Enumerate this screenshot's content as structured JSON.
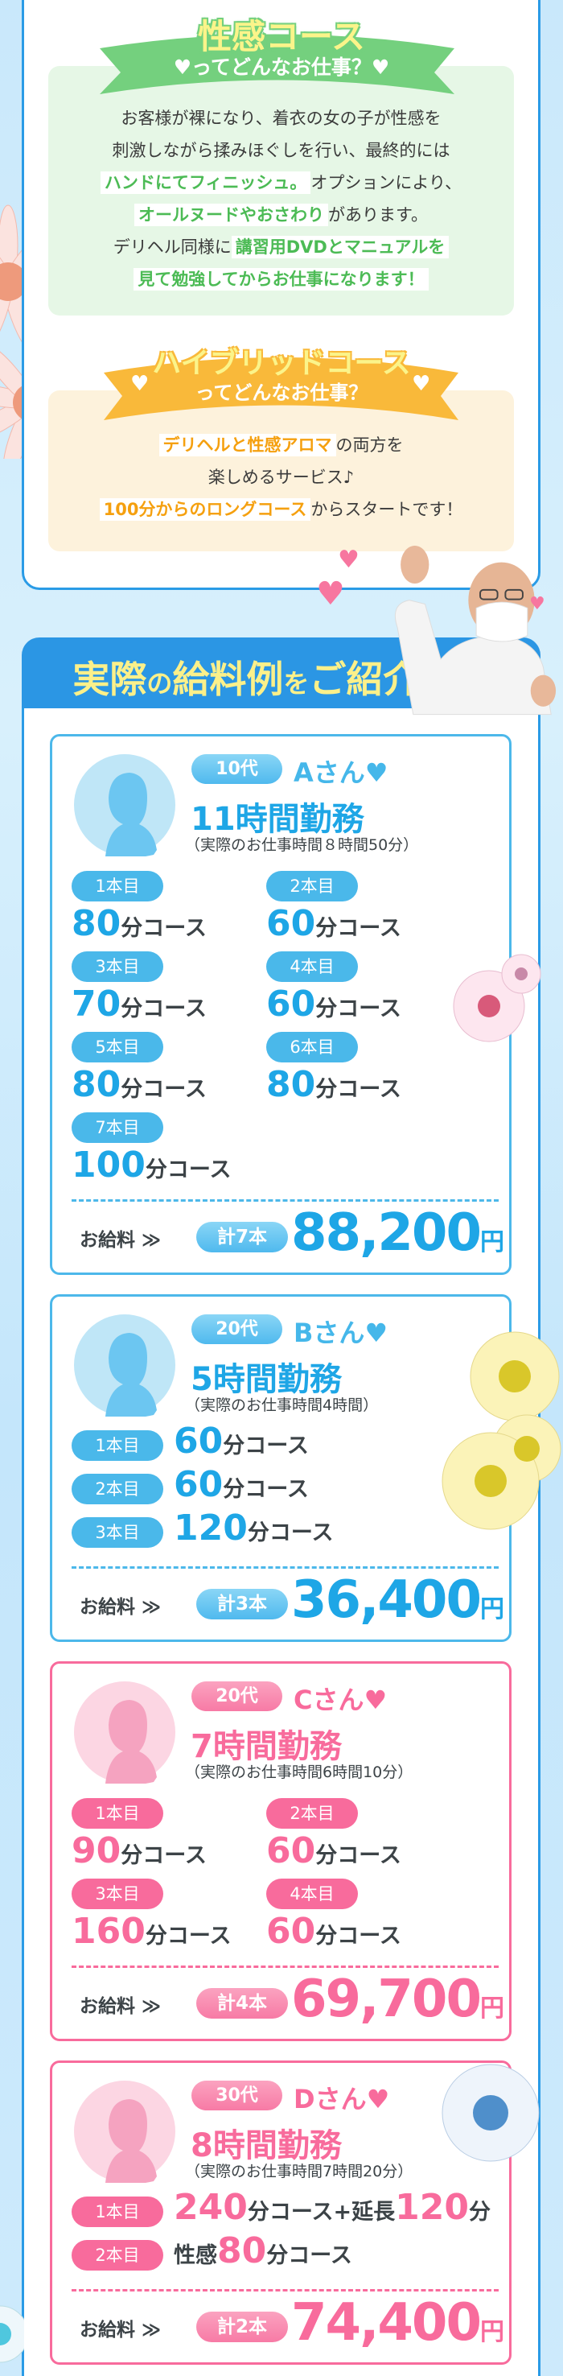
{
  "colors": {
    "blue": "#2a9be6",
    "card_blue": "#4cb8ea",
    "pink": "#f86b9c",
    "green": "#74d07e",
    "green_text": "#4cbb55",
    "orange": "#f9b93a",
    "orange_text": "#f5a00f",
    "yellow": "#fbf48a"
  },
  "seikan": {
    "title": "性感コース",
    "subtitle": "♥ってどんなお仕事？♥",
    "lines": [
      [
        {
          "t": "お客様が裸になり、着衣の女の子が性感を",
          "hl": false
        }
      ],
      [
        {
          "t": "刺激しながら揉みほぐしを行い、最終的には",
          "hl": false
        }
      ],
      [
        {
          "t": "ハンドにてフィニッシュ。",
          "hl": true
        },
        {
          "t": "オプションにより、",
          "hl": false
        }
      ],
      [
        {
          "t": "オールヌードやおさわり",
          "hl": true
        },
        {
          "t": "があります。",
          "hl": false
        }
      ],
      [
        {
          "t": "デリヘル同様に",
          "hl": false
        },
        {
          "t": "講習用DVDとマニュアルを",
          "hl": true
        }
      ],
      [
        {
          "t": "見て勉強してからお仕事になります！",
          "hl": true
        }
      ]
    ]
  },
  "hybrid": {
    "title": "ハイブリッドコース",
    "subtitle": "ってどんなお仕事？",
    "heart": "♥",
    "lines": [
      [
        {
          "t": "デリヘルと性感アロマ",
          "hl": true
        },
        {
          "t": "の両方を",
          "hl": false
        }
      ],
      [
        {
          "t": "楽しめるサービス♪",
          "hl": false
        }
      ],
      [
        {
          "t": "100分からのロングコース",
          "hl": true
        },
        {
          "t": "からスタートです！",
          "hl": false
        }
      ]
    ]
  },
  "salary_section": {
    "heading": [
      {
        "t": "実際",
        "s": false
      },
      {
        "t": "の",
        "s": true
      },
      {
        "t": "給料例",
        "s": false
      },
      {
        "t": "を",
        "s": true
      },
      {
        "t": "ご紹介",
        "s": false
      },
      {
        "t": "♥",
        "s": false
      }
    ]
  },
  "cards": [
    {
      "theme": "blue",
      "layout": "grid",
      "age": "10代",
      "name": "Aさん♥",
      "hours": "11時間勤務",
      "actual": "（実際のお仕事時間８時間50分）",
      "courses": [
        {
          "label": "1本目",
          "parts": [
            {
              "t": "80",
              "n": true
            },
            {
              "t": "分コース",
              "n": false
            }
          ]
        },
        {
          "label": "2本目",
          "parts": [
            {
              "t": "60",
              "n": true
            },
            {
              "t": "分コース",
              "n": false
            }
          ]
        },
        {
          "label": "3本目",
          "parts": [
            {
              "t": "70",
              "n": true
            },
            {
              "t": "分コース",
              "n": false
            }
          ]
        },
        {
          "label": "4本目",
          "parts": [
            {
              "t": "60",
              "n": true
            },
            {
              "t": "分コース",
              "n": false
            }
          ]
        },
        {
          "label": "5本目",
          "parts": [
            {
              "t": "80",
              "n": true
            },
            {
              "t": "分コース",
              "n": false
            }
          ]
        },
        {
          "label": "6本目",
          "parts": [
            {
              "t": "80",
              "n": true
            },
            {
              "t": "分コース",
              "n": false
            }
          ]
        },
        {
          "label": "7本目",
          "parts": [
            {
              "t": "100",
              "n": true
            },
            {
              "t": "分コース",
              "n": false
            }
          ]
        }
      ],
      "total_label": "お給料 ≫",
      "count": "計7本",
      "amount": "88,200",
      "yen": "円"
    },
    {
      "theme": "blue",
      "layout": "list",
      "age": "20代",
      "name": "Bさん♥",
      "hours": "5時間勤務",
      "actual": "（実際のお仕事時間4時間）",
      "courses": [
        {
          "label": "1本目",
          "parts": [
            {
              "t": "60",
              "n": true
            },
            {
              "t": "分コース",
              "n": false
            }
          ]
        },
        {
          "label": "2本目",
          "parts": [
            {
              "t": "60",
              "n": true
            },
            {
              "t": "分コース",
              "n": false
            }
          ]
        },
        {
          "label": "3本目",
          "parts": [
            {
              "t": "120",
              "n": true
            },
            {
              "t": "分コース",
              "n": false
            }
          ]
        }
      ],
      "total_label": "お給料 ≫",
      "count": "計3本",
      "amount": "36,400",
      "yen": "円"
    },
    {
      "theme": "pink",
      "layout": "grid",
      "age": "20代",
      "name": "Cさん♥",
      "hours": "7時間勤務",
      "actual": "（実際のお仕事時間6時間10分）",
      "courses": [
        {
          "label": "1本目",
          "parts": [
            {
              "t": "90",
              "n": true
            },
            {
              "t": "分コース",
              "n": false
            }
          ]
        },
        {
          "label": "2本目",
          "parts": [
            {
              "t": "60",
              "n": true
            },
            {
              "t": "分コース",
              "n": false
            }
          ]
        },
        {
          "label": "3本目",
          "parts": [
            {
              "t": "160",
              "n": true
            },
            {
              "t": "分コース",
              "n": false
            }
          ]
        },
        {
          "label": "4本目",
          "parts": [
            {
              "t": "60",
              "n": true
            },
            {
              "t": "分コース",
              "n": false
            }
          ]
        }
      ],
      "total_label": "お給料 ≫",
      "count": "計4本",
      "amount": "69,700",
      "yen": "円"
    },
    {
      "theme": "pink",
      "layout": "list",
      "age": "30代",
      "name": "Dさん♥",
      "hours": "8時間勤務",
      "actual": "（実際のお仕事時間7時間20分）",
      "courses": [
        {
          "label": "1本目",
          "parts": [
            {
              "t": "240",
              "n": true
            },
            {
              "t": "分コース+延長",
              "n": false
            },
            {
              "t": "120",
              "n": true
            },
            {
              "t": "分",
              "n": false
            }
          ]
        },
        {
          "label": "2本目",
          "parts": [
            {
              "t": "性感",
              "n": false
            },
            {
              "t": "80",
              "n": true
            },
            {
              "t": "分コース",
              "n": false
            }
          ]
        }
      ],
      "total_label": "お給料 ≫",
      "count": "計2本",
      "amount": "74,400",
      "yen": "円"
    }
  ]
}
